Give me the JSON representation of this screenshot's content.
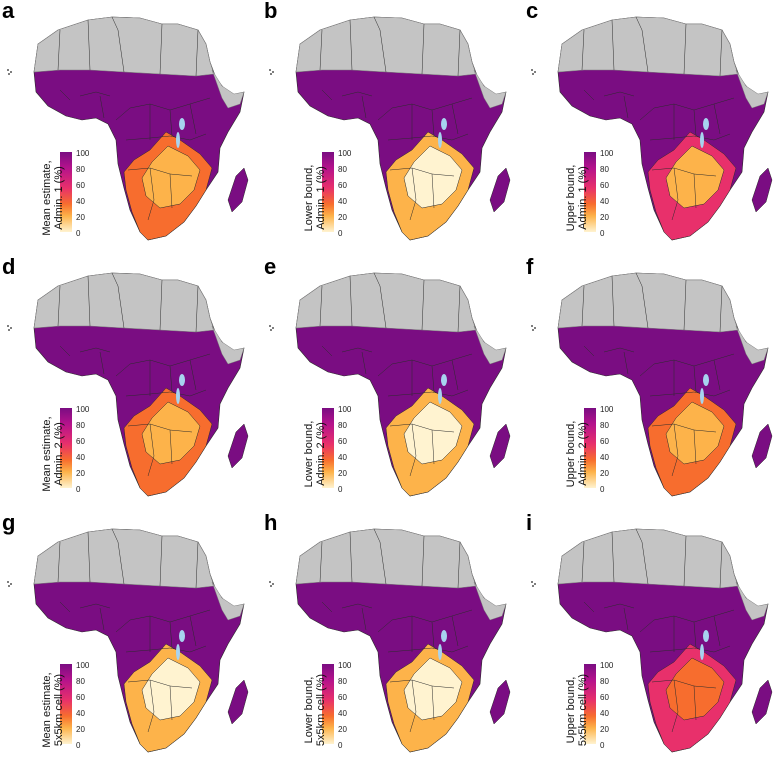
{
  "colors": {
    "no_data": "#c4c4c4",
    "high": "#7a0d82",
    "mid_high": "#b5128c",
    "mid": "#e8306b",
    "mid_low": "#f76d2e",
    "low": "#fdb34a",
    "very_low": "#fff3d0",
    "water": "#a7d3ef",
    "border": "#2b2b2b"
  },
  "legend": {
    "ticks": [
      "100",
      "80",
      "60",
      "40",
      "20",
      "0"
    ]
  },
  "panels": [
    {
      "letter": "a",
      "title_line1": "Mean estimate,",
      "title_line2": "Admin. 1 (%)",
      "south_level": 0.25
    },
    {
      "letter": "b",
      "title_line1": "Lower bound,",
      "title_line2": "Admin. 1 (%)",
      "south_level": 0.15
    },
    {
      "letter": "c",
      "title_line1": "Upper bound,",
      "title_line2": "Admin. 1 (%)",
      "south_level": 0.4
    },
    {
      "letter": "d",
      "title_line1": "Mean estimate,",
      "title_line2": "Admin. 2 (%)",
      "south_level": 0.22
    },
    {
      "letter": "e",
      "title_line1": "Lower bound,",
      "title_line2": "Admin. 2 (%)",
      "south_level": 0.12
    },
    {
      "letter": "f",
      "title_line1": "Upper bound,",
      "title_line2": "Admin. 2 (%)",
      "south_level": 0.38
    },
    {
      "letter": "g",
      "title_line1": "Mean estimate,",
      "title_line2": "5x5km cell (%)",
      "south_level": 0.2
    },
    {
      "letter": "h",
      "title_line1": "Lower bound,",
      "title_line2": "5x5km cell (%)",
      "south_level": 0.05
    },
    {
      "letter": "i",
      "title_line1": "Upper bound,",
      "title_line2": "5x5km cell (%)",
      "south_level": 0.42
    }
  ]
}
